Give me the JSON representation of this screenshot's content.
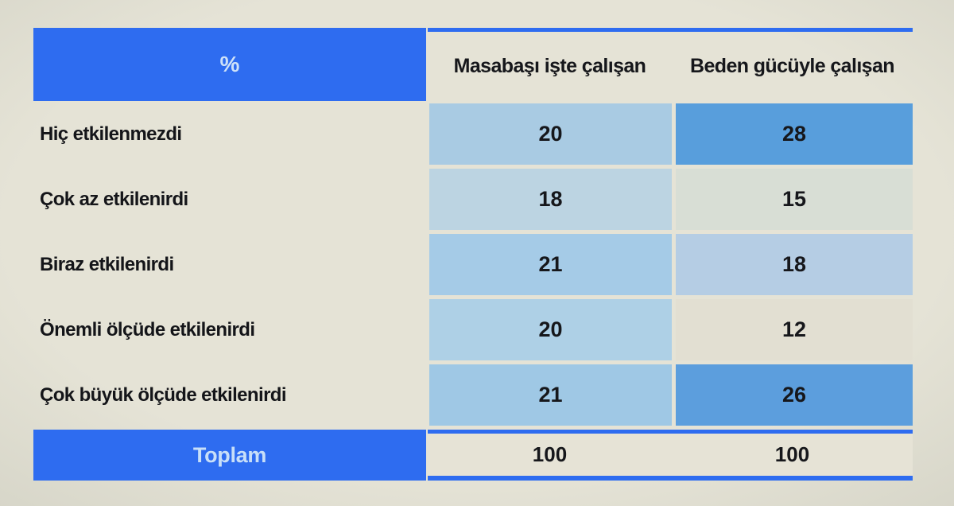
{
  "table": {
    "corner_label": "%",
    "columns": [
      "Masabaşı işte çalışan",
      "Beden gücüyle çalışan"
    ],
    "rows": [
      {
        "label": "Hiç etkilenmezdi",
        "values": [
          "20",
          "28"
        ],
        "colors": [
          "#a9cbe3",
          "#589edc"
        ]
      },
      {
        "label": "Çok az etkilenirdi",
        "values": [
          "18",
          "15"
        ],
        "colors": [
          "#bcd4e2",
          "#d8ded5"
        ]
      },
      {
        "label": "Biraz etkilenirdi",
        "values": [
          "21",
          "18"
        ],
        "colors": [
          "#a5cbe7",
          "#b5cde4"
        ]
      },
      {
        "label": "Önemli ölçüde etkilenirdi",
        "values": [
          "20",
          "12"
        ],
        "colors": [
          "#aed0e6",
          "#e2dfd2"
        ]
      },
      {
        "label": "Çok büyük ölçüde etkilenirdi",
        "values": [
          "21",
          "26"
        ],
        "colors": [
          "#9fc8e5",
          "#5c9edd"
        ]
      }
    ],
    "total": {
      "label": "Toplam",
      "values": [
        "100",
        "100"
      ]
    },
    "colors": {
      "accent_blue": "#2e6cf0",
      "light_blue_text": "#cfe2f8",
      "cream_background": "#e5e3d6",
      "dark_text": "#16171b"
    }
  },
  "chart_data": {
    "type": "table",
    "title": "%",
    "columns": [
      "Masabaşı işte çalışan",
      "Beden gücüyle çalışan"
    ],
    "row_labels": [
      "Hiç etkilenmezdi",
      "Çok az etkilenirdi",
      "Biraz etkilenirdi",
      "Önemli ölçüde etkilenirdi",
      "Çok büyük ölçüde etkilenirdi",
      "Toplam"
    ],
    "series": [
      {
        "name": "Masabaşı işte çalışan",
        "values": [
          20,
          18,
          21,
          20,
          21,
          100
        ]
      },
      {
        "name": "Beden gücüyle çalışan",
        "values": [
          28,
          15,
          18,
          12,
          26,
          100
        ]
      }
    ],
    "layout_hints": "heatmap-style cell shading: higher percentages shaded deeper blue; header and total rows in solid accent blue"
  }
}
